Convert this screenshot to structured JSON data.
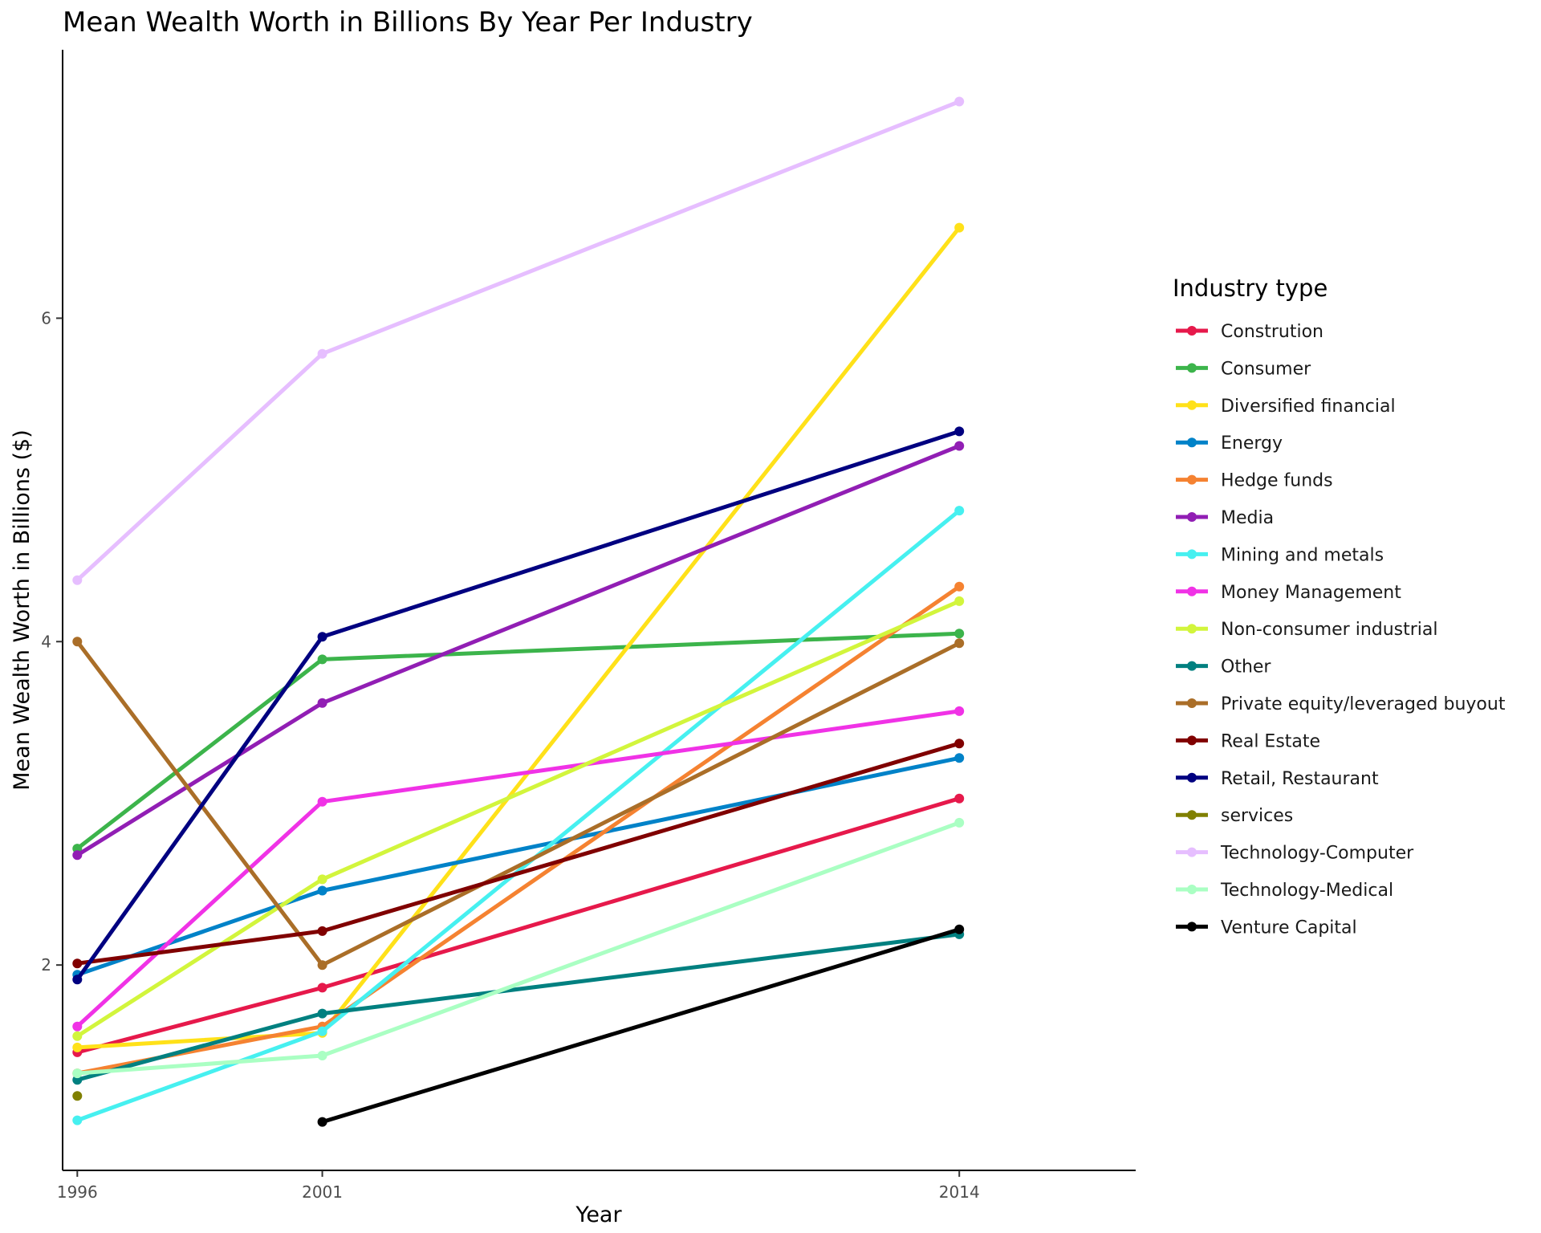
{
  "chart_data": {
    "type": "line",
    "title": "Mean Wealth Worth in Billions By Year Per Industry",
    "xlabel": "Year",
    "ylabel": "Mean Wealth Worth in Billions ($)",
    "x_ticks": [
      1996,
      2001,
      2014
    ],
    "y_ticks": [
      2,
      4,
      6
    ],
    "xlim": [
      1995.7,
      2017.6
    ],
    "ylim": [
      0.73,
      7.66
    ],
    "grid": false,
    "legend": {
      "title": "Industry type",
      "position": "right"
    },
    "series": [
      {
        "name": "Constrution",
        "color": "#e6194b",
        "points": [
          [
            1996,
            1.46
          ],
          [
            2001,
            1.86
          ],
          [
            2014,
            3.03
          ]
        ]
      },
      {
        "name": "Consumer",
        "color": "#3cb44b",
        "points": [
          [
            1996,
            2.72
          ],
          [
            2001,
            3.89
          ],
          [
            2014,
            4.05
          ]
        ]
      },
      {
        "name": "Diversified financial",
        "color": "#ffe119",
        "points": [
          [
            1996,
            1.49
          ],
          [
            2001,
            1.58
          ],
          [
            2014,
            6.56
          ]
        ]
      },
      {
        "name": "Energy",
        "color": "#0082c8",
        "points": [
          [
            1996,
            1.94
          ],
          [
            2001,
            2.46
          ],
          [
            2014,
            3.28
          ]
        ]
      },
      {
        "name": "Hedge funds",
        "color": "#f58231",
        "points": [
          [
            1996,
            1.33
          ],
          [
            2001,
            1.62
          ],
          [
            2014,
            4.34
          ]
        ]
      },
      {
        "name": "Media",
        "color": "#911eb4",
        "points": [
          [
            1996,
            2.68
          ],
          [
            2001,
            3.62
          ],
          [
            2014,
            5.21
          ]
        ]
      },
      {
        "name": "Mining and metals",
        "color": "#46f0f0",
        "points": [
          [
            1996,
            1.04
          ],
          [
            2001,
            1.59
          ],
          [
            2014,
            4.81
          ]
        ]
      },
      {
        "name": "Money Management",
        "color": "#f032e6",
        "points": [
          [
            1996,
            1.62
          ],
          [
            2001,
            3.01
          ],
          [
            2014,
            3.57
          ]
        ]
      },
      {
        "name": "Non-consumer industrial",
        "color": "#d2f53c",
        "points": [
          [
            1996,
            1.56
          ],
          [
            2001,
            2.53
          ],
          [
            2014,
            4.25
          ]
        ]
      },
      {
        "name": "Other",
        "color": "#008080",
        "points": [
          [
            1996,
            1.29
          ],
          [
            2001,
            1.7
          ],
          [
            2014,
            2.19
          ]
        ]
      },
      {
        "name": "Private equity/leveraged buyout",
        "color": "#aa6e28",
        "points": [
          [
            1996,
            4.0
          ],
          [
            2001,
            2.0
          ],
          [
            2014,
            3.99
          ]
        ]
      },
      {
        "name": "Real Estate",
        "color": "#800000",
        "points": [
          [
            1996,
            2.01
          ],
          [
            2001,
            2.21
          ],
          [
            2014,
            3.37
          ]
        ]
      },
      {
        "name": "Retail, Restaurant",
        "color": "#000080",
        "points": [
          [
            1996,
            1.91
          ],
          [
            2001,
            4.03
          ],
          [
            2014,
            5.3
          ]
        ]
      },
      {
        "name": "services",
        "color": "#808000",
        "points": [
          [
            1996,
            1.19
          ]
        ]
      },
      {
        "name": "Technology-Computer",
        "color": "#e6beff",
        "points": [
          [
            1996,
            4.38
          ],
          [
            2001,
            5.78
          ],
          [
            2014,
            7.34
          ]
        ]
      },
      {
        "name": "Technology-Medical",
        "color": "#aaffc3",
        "points": [
          [
            1996,
            1.33
          ],
          [
            2001,
            1.44
          ],
          [
            2014,
            2.88
          ]
        ]
      },
      {
        "name": "Venture Capital",
        "color": "#000000",
        "points": [
          [
            2001,
            1.03
          ],
          [
            2014,
            2.22
          ]
        ]
      }
    ]
  }
}
